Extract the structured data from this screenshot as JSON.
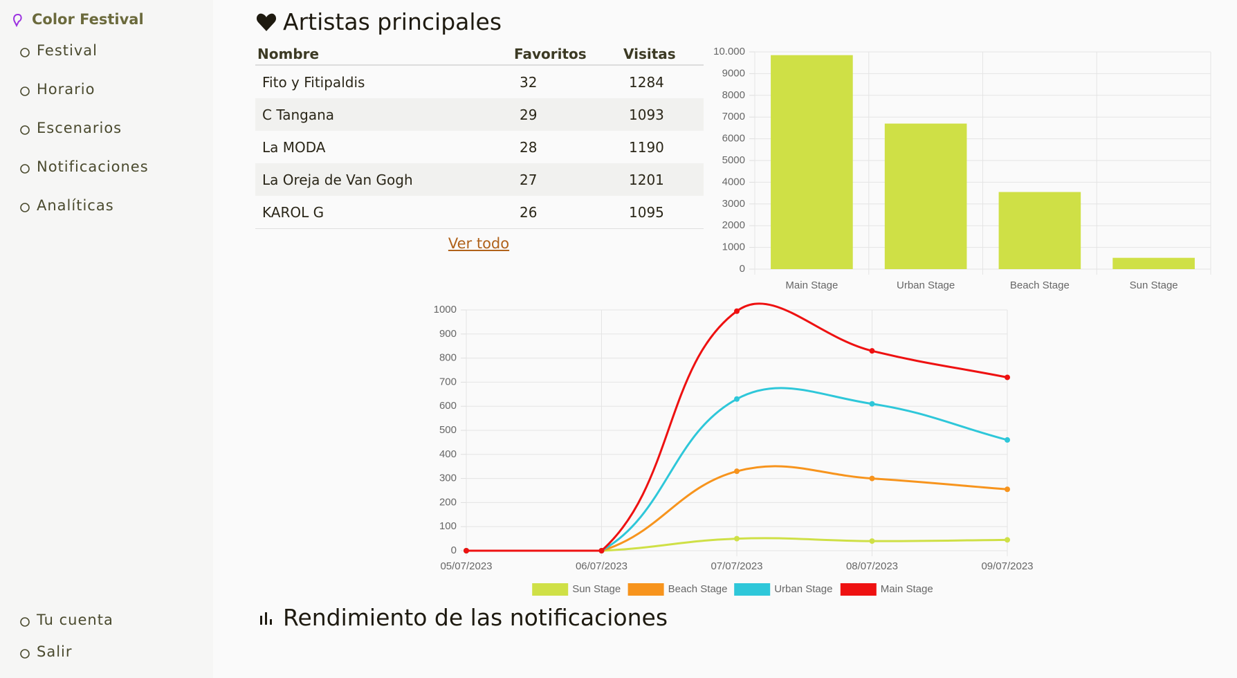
{
  "sidebar": {
    "brand": "Color Festival",
    "nav": [
      "Festival",
      "Horario",
      "Escenarios",
      "Notificaciones",
      "Analíticas"
    ],
    "footer": [
      "Tu cuenta",
      "Salir"
    ]
  },
  "artists": {
    "title": "Artistas principales",
    "columns": [
      "Nombre",
      "Favoritos",
      "Visitas"
    ],
    "rows": [
      [
        "Fito y Fitipaldis",
        32,
        1284
      ],
      [
        "C Tangana",
        29,
        1093
      ],
      [
        "La MODA",
        28,
        1190
      ],
      [
        "La Oreja de Van Gogh",
        27,
        1201
      ],
      [
        "KAROL G",
        26,
        1095
      ]
    ],
    "link": "Ver todo"
  },
  "chart_data": [
    {
      "type": "bar",
      "categories": [
        "Main Stage",
        "Urban Stage",
        "Beach Stage",
        "Sun Stage"
      ],
      "values": [
        9850,
        6700,
        3550,
        520
      ],
      "color": "#cfe046",
      "ylim": [
        0,
        10000
      ],
      "yticks": [
        0,
        1000,
        2000,
        3000,
        4000,
        5000,
        6000,
        7000,
        8000,
        9000,
        {
          "value": 10000,
          "label": "10.000"
        }
      ],
      "grid": true
    },
    {
      "type": "line",
      "categories": [
        "05/07/2023",
        "06/07/2023",
        "07/07/2023",
        "08/07/2023",
        "09/07/2023"
      ],
      "series": [
        {
          "name": "Sun Stage",
          "color": "#cfe046",
          "values": [
            0,
            0,
            50,
            40,
            45
          ]
        },
        {
          "name": "Beach Stage",
          "color": "#f7941d",
          "values": [
            0,
            0,
            330,
            300,
            255
          ]
        },
        {
          "name": "Urban Stage",
          "color": "#2ec7d9",
          "values": [
            0,
            0,
            630,
            610,
            460
          ]
        },
        {
          "name": "Main Stage",
          "color": "#ee1111",
          "values": [
            0,
            0,
            995,
            830,
            720
          ]
        }
      ],
      "ylim": [
        0,
        1000
      ],
      "yticks": [
        0,
        100,
        200,
        300,
        400,
        500,
        600,
        700,
        800,
        900,
        1000
      ],
      "grid": true,
      "legend": "bottom"
    }
  ],
  "section_title": "Rendimiento de las notificaciones"
}
